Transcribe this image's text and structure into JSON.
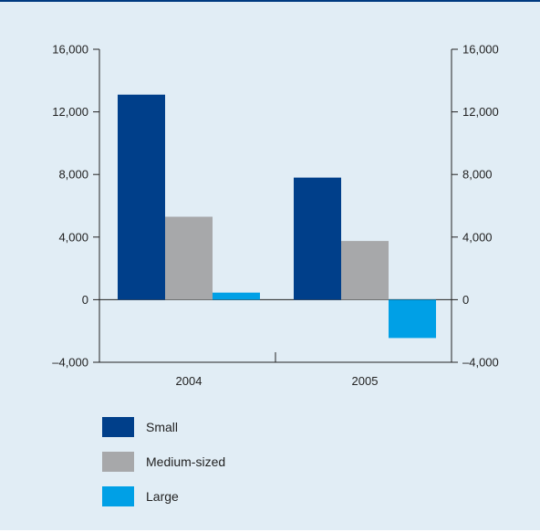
{
  "chart_data": {
    "type": "bar",
    "categories": [
      "2004",
      "2005"
    ],
    "series": [
      {
        "name": "Small",
        "values": [
          13100,
          7800
        ],
        "color": "#003f8a"
      },
      {
        "name": "Medium-sized",
        "values": [
          5300,
          3750
        ],
        "color": "#a7a8aa"
      },
      {
        "name": "Large",
        "values": [
          450,
          -2450
        ],
        "color": "#00a0e6"
      }
    ],
    "ylim": [
      -4000,
      16000
    ],
    "yticks": [
      -4000,
      0,
      4000,
      8000,
      12000,
      16000
    ],
    "ytick_labels": [
      "–4,000",
      "0",
      "4,000",
      "8,000",
      "12,000",
      "16,000"
    ],
    "secondary_axis": true,
    "grid": false,
    "legend_position": "bottom-left",
    "title": "",
    "xlabel": "",
    "ylabel": ""
  }
}
